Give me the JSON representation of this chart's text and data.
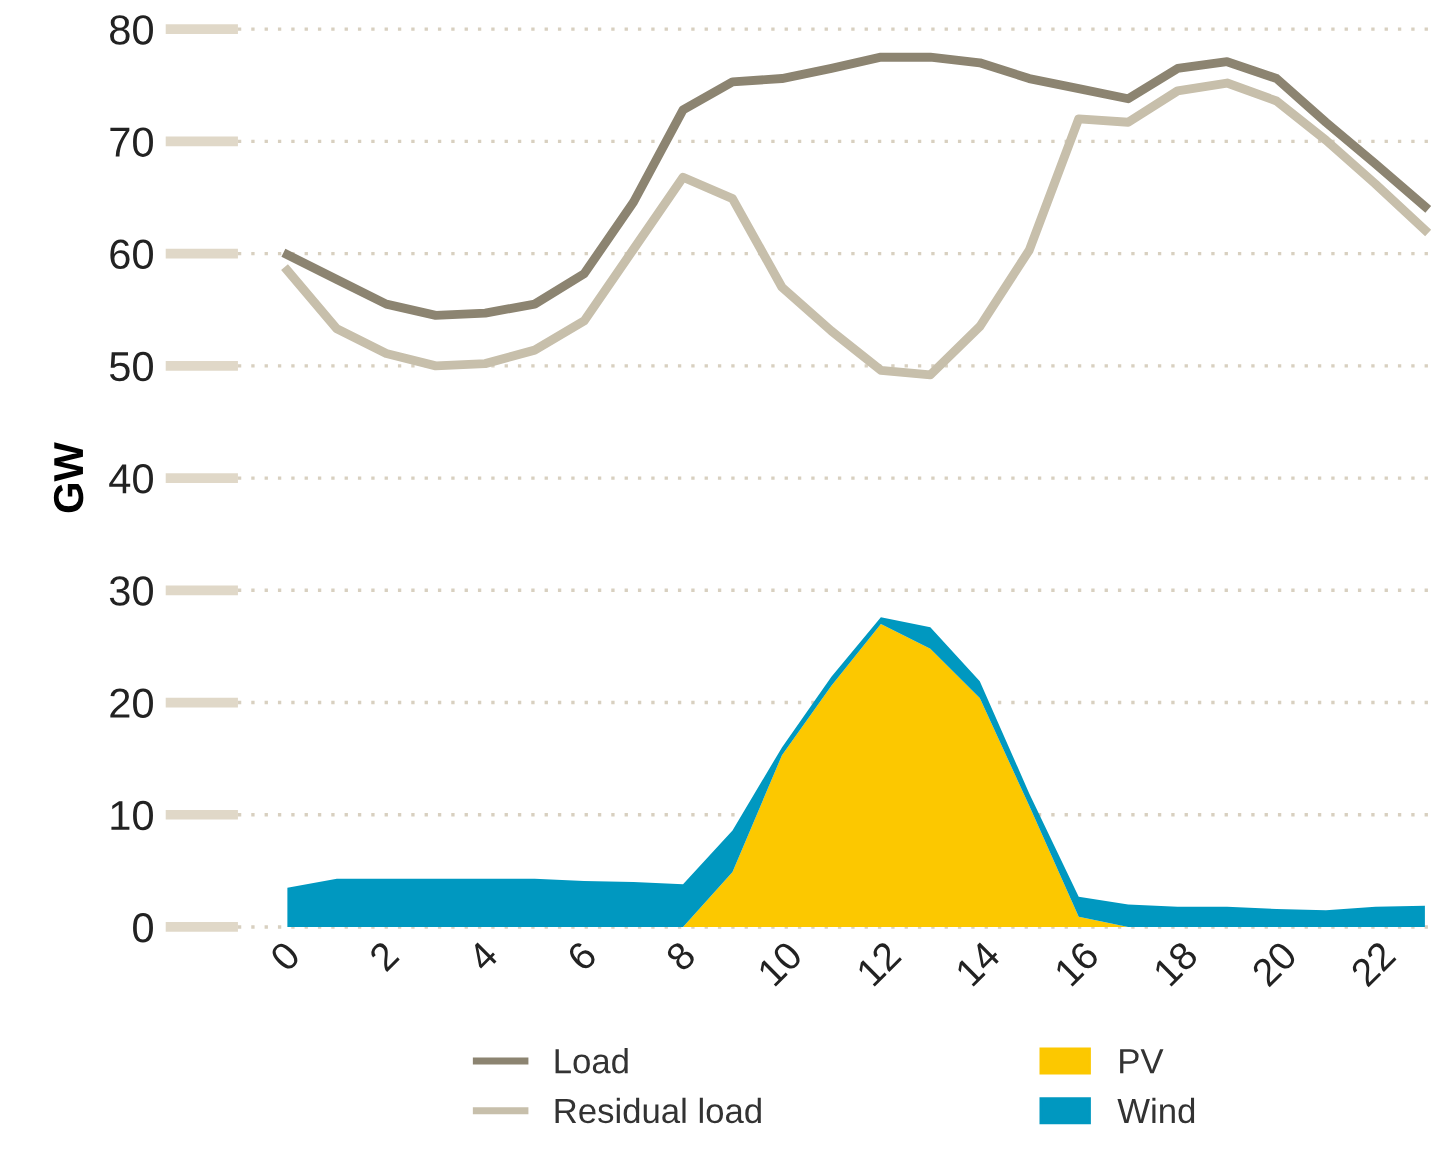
{
  "chart_data": {
    "type": "line",
    "ylabel": "GW",
    "x": [
      0,
      1,
      2,
      3,
      4,
      5,
      6,
      7,
      8,
      9,
      10,
      11,
      12,
      13,
      14,
      15,
      16,
      17,
      18,
      19,
      20,
      21,
      22,
      23
    ],
    "series": [
      {
        "name": "Load",
        "color": "#8c8471",
        "values": [
          59.9,
          57.7,
          55.5,
          54.5,
          54.7,
          55.5,
          58.2,
          64.6,
          72.8,
          75.3,
          75.6,
          76.5,
          77.5,
          77.5,
          77.0,
          75.6,
          74.7,
          73.8,
          76.5,
          77.1,
          75.6,
          71.7,
          68.0,
          64.2
        ]
      },
      {
        "name": "Residual load",
        "color": "#c7bfab",
        "values": [
          58.5,
          53.3,
          51.1,
          50.0,
          50.2,
          51.4,
          54.0,
          60.4,
          66.8,
          64.9,
          57.0,
          53.1,
          49.6,
          49.2,
          53.5,
          60.3,
          72.0,
          71.7,
          74.5,
          75.2,
          73.6,
          70.1,
          66.2,
          62.1
        ]
      },
      {
        "name": "PV",
        "type": "area",
        "color": "#fcc800",
        "values": [
          0,
          0,
          0,
          0,
          0,
          0,
          0,
          0,
          0,
          4.9,
          15.3,
          21.5,
          27.0,
          24.8,
          20.4,
          10.8,
          0.9,
          0,
          0,
          0,
          0,
          0,
          0,
          0
        ]
      },
      {
        "name": "Wind",
        "type": "area",
        "color": "#0098c0",
        "values": [
          3.5,
          4.3,
          4.3,
          4.3,
          4.3,
          4.3,
          4.1,
          4.0,
          3.8,
          3.7,
          0.7,
          0.8,
          0.6,
          1.9,
          1.5,
          1.1,
          1.8,
          2.0,
          1.8,
          1.8,
          1.6,
          1.5,
          1.8,
          1.9
        ]
      }
    ],
    "stacked": true,
    "xlim": [
      -1,
      23.2
    ],
    "xticks": [
      0,
      2,
      4,
      6,
      8,
      10,
      12,
      14,
      16,
      18,
      20,
      22
    ],
    "ylim": [
      0,
      80
    ],
    "yticks": [
      0,
      10,
      20,
      30,
      40,
      50,
      60,
      70,
      80
    ],
    "grid": "y",
    "legend": "bottom"
  }
}
